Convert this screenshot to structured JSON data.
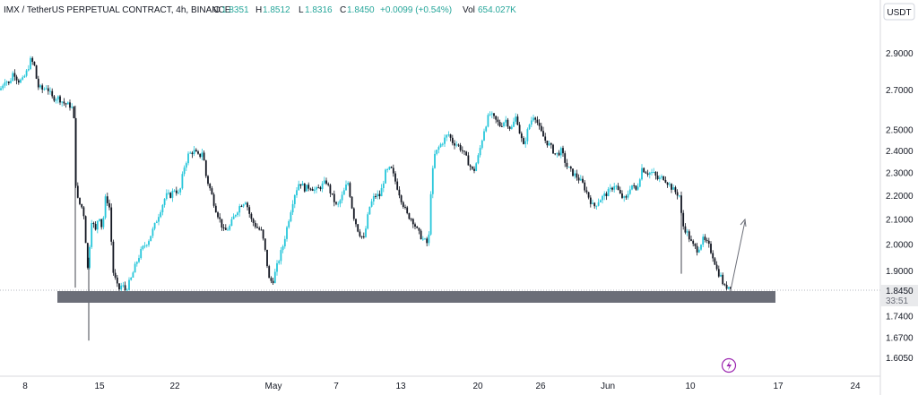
{
  "header": {
    "legend": "IMX / TetherUS PERPETUAL CONTRACT, 4h, BINANCE",
    "o_label": "O",
    "o_value": "1.8351",
    "h_label": "H",
    "h_value": "1.8512",
    "l_label": "L",
    "l_value": "1.8316",
    "c_label": "C",
    "c_value": "1.8450",
    "change": "+0.0099 (+0.54%)",
    "vol_label": "Vol",
    "vol_value": "654.027K",
    "currency_button": "USDT"
  },
  "colors": {
    "up": "#26c6da",
    "down": "#131722",
    "zone": "#6b6e78",
    "axis_text": "#131722",
    "background": "#ffffff",
    "price_tag_bg": "#e9eaec"
  },
  "price_tag": {
    "price": "1.8450",
    "countdown": "33:51"
  },
  "icons": {
    "bottom_logo": "lightning-icon"
  },
  "chart_data": {
    "type": "candlestick",
    "title": "IMX / TetherUS PERPETUAL CONTRACT, 4h, BINANCE",
    "y_scale": "log",
    "ylim": [
      1.56,
      3.0
    ],
    "y_ticks": [
      "2.9000",
      "2.7000",
      "2.5000",
      "2.4000",
      "2.3000",
      "2.2000",
      "2.1000",
      "2.0000",
      "1.9000",
      "1.7400",
      "1.6700",
      "1.6050"
    ],
    "x_ticks": [
      "8",
      "15",
      "22",
      "May",
      "7",
      "13",
      "20",
      "26",
      "Jun",
      "10",
      "17",
      "24"
    ],
    "last_price": 1.845,
    "support_zone": [
      1.818,
      1.842
    ],
    "projection_arrow": {
      "from": 1.84,
      "to": 2.1
    },
    "price_path": [
      [
        0,
        2.7
      ],
      [
        6,
        2.76
      ],
      [
        10,
        2.73
      ],
      [
        15,
        2.8
      ],
      [
        20,
        2.75
      ],
      [
        25,
        2.75
      ],
      [
        30,
        2.8
      ],
      [
        34,
        2.86
      ],
      [
        38,
        2.84
      ],
      [
        42,
        2.72
      ],
      [
        48,
        2.7
      ],
      [
        52,
        2.72
      ],
      [
        58,
        2.66
      ],
      [
        65,
        2.66
      ],
      [
        72,
        2.63
      ],
      [
        78,
        2.62
      ],
      [
        82,
        2.6
      ],
      [
        85,
        2.2
      ],
      [
        88,
        2.17
      ],
      [
        93,
        2.14
      ],
      [
        98,
        1.9
      ],
      [
        102,
        2.1
      ],
      [
        107,
        2.05
      ],
      [
        110,
        2.13
      ],
      [
        114,
        2.06
      ],
      [
        118,
        2.2
      ],
      [
        122,
        2.15
      ],
      [
        126,
        1.9
      ],
      [
        132,
        1.83
      ],
      [
        136,
        1.85
      ],
      [
        140,
        1.83
      ],
      [
        146,
        1.87
      ],
      [
        152,
        1.93
      ],
      [
        158,
        1.98
      ],
      [
        166,
        2.02
      ],
      [
        172,
        2.07
      ],
      [
        178,
        2.13
      ],
      [
        185,
        2.2
      ],
      [
        190,
        2.2
      ],
      [
        195,
        2.23
      ],
      [
        200,
        2.2
      ],
      [
        205,
        2.32
      ],
      [
        210,
        2.38
      ],
      [
        216,
        2.4
      ],
      [
        222,
        2.37
      ],
      [
        226,
        2.4
      ],
      [
        230,
        2.28
      ],
      [
        235,
        2.22
      ],
      [
        240,
        2.15
      ],
      [
        245,
        2.1
      ],
      [
        250,
        2.05
      ],
      [
        256,
        2.07
      ],
      [
        262,
        2.12
      ],
      [
        268,
        2.16
      ],
      [
        274,
        2.18
      ],
      [
        280,
        2.1
      ],
      [
        286,
        2.07
      ],
      [
        292,
        2.05
      ],
      [
        297,
        1.95
      ],
      [
        300,
        1.87
      ],
      [
        304,
        1.86
      ],
      [
        310,
        1.93
      ],
      [
        316,
        2.0
      ],
      [
        322,
        2.1
      ],
      [
        328,
        2.2
      ],
      [
        334,
        2.26
      ],
      [
        340,
        2.23
      ],
      [
        346,
        2.24
      ],
      [
        352,
        2.22
      ],
      [
        358,
        2.24
      ],
      [
        364,
        2.26
      ],
      [
        370,
        2.2
      ],
      [
        376,
        2.15
      ],
      [
        382,
        2.2
      ],
      [
        388,
        2.26
      ],
      [
        394,
        2.12
      ],
      [
        400,
        2.05
      ],
      [
        406,
        2.02
      ],
      [
        412,
        2.15
      ],
      [
        418,
        2.2
      ],
      [
        424,
        2.2
      ],
      [
        430,
        2.3
      ],
      [
        436,
        2.32
      ],
      [
        442,
        2.25
      ],
      [
        448,
        2.18
      ],
      [
        454,
        2.12
      ],
      [
        460,
        2.1
      ],
      [
        466,
        2.05
      ],
      [
        472,
        2.02
      ],
      [
        478,
        2.0
      ],
      [
        481,
        2.25
      ],
      [
        485,
        2.38
      ],
      [
        490,
        2.42
      ],
      [
        495,
        2.45
      ],
      [
        500,
        2.48
      ],
      [
        505,
        2.44
      ],
      [
        510,
        2.43
      ],
      [
        516,
        2.4
      ],
      [
        522,
        2.35
      ],
      [
        528,
        2.3
      ],
      [
        534,
        2.38
      ],
      [
        540,
        2.5
      ],
      [
        546,
        2.58
      ],
      [
        552,
        2.55
      ],
      [
        558,
        2.52
      ],
      [
        564,
        2.55
      ],
      [
        570,
        2.5
      ],
      [
        576,
        2.57
      ],
      [
        580,
        2.48
      ],
      [
        584,
        2.42
      ],
      [
        590,
        2.52
      ],
      [
        596,
        2.58
      ],
      [
        602,
        2.5
      ],
      [
        608,
        2.45
      ],
      [
        614,
        2.42
      ],
      [
        620,
        2.38
      ],
      [
        626,
        2.4
      ],
      [
        632,
        2.33
      ],
      [
        638,
        2.3
      ],
      [
        644,
        2.28
      ],
      [
        650,
        2.25
      ],
      [
        656,
        2.2
      ],
      [
        662,
        2.15
      ],
      [
        668,
        2.18
      ],
      [
        674,
        2.2
      ],
      [
        680,
        2.22
      ],
      [
        686,
        2.25
      ],
      [
        692,
        2.2
      ],
      [
        698,
        2.18
      ],
      [
        704,
        2.25
      ],
      [
        710,
        2.22
      ],
      [
        716,
        2.32
      ],
      [
        722,
        2.3
      ],
      [
        728,
        2.3
      ],
      [
        734,
        2.27
      ],
      [
        740,
        2.28
      ],
      [
        746,
        2.25
      ],
      [
        752,
        2.22
      ],
      [
        758,
        2.2
      ],
      [
        761,
        2.08
      ],
      [
        766,
        2.05
      ],
      [
        772,
        2.0
      ],
      [
        778,
        1.98
      ],
      [
        784,
        2.02
      ],
      [
        790,
        2.0
      ],
      [
        796,
        1.95
      ],
      [
        800,
        1.9
      ],
      [
        804,
        1.88
      ],
      [
        808,
        1.84
      ],
      [
        812,
        1.845
      ],
      [
        816,
        1.845
      ]
    ]
  }
}
